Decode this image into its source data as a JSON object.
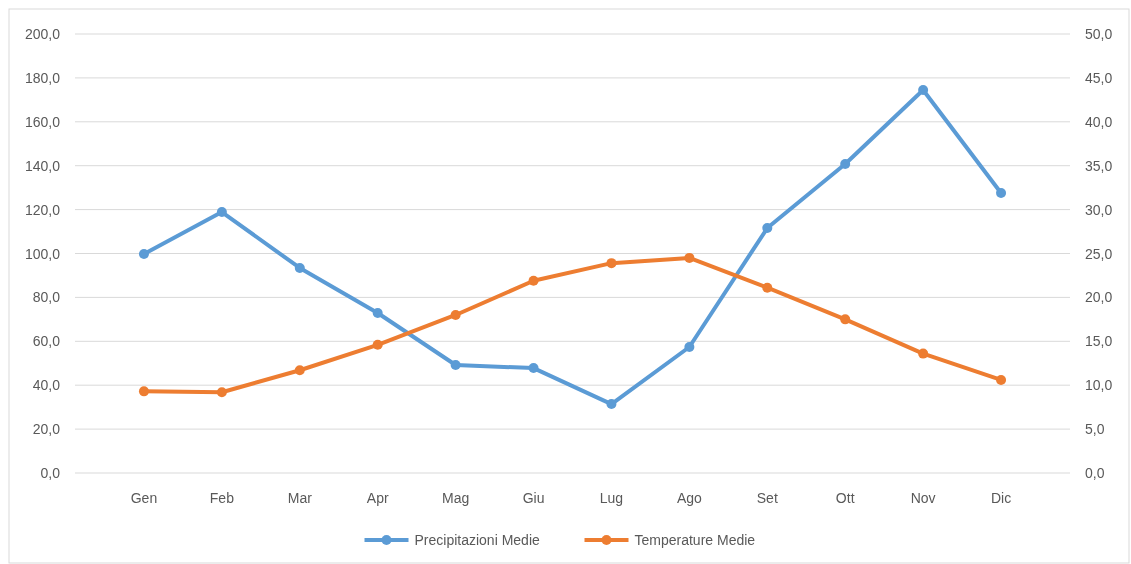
{
  "chart_data": {
    "type": "line",
    "categories": [
      "Gen",
      "Feb",
      "Mar",
      "Apr",
      "Mag",
      "Giu",
      "Lug",
      "Ago",
      "Set",
      "Ott",
      "Nov",
      "Dic"
    ],
    "series": [
      {
        "name": "Precipitazioni Medie",
        "color": "#5b9bd5",
        "values": [
          99.8,
          118.9,
          93.4,
          72.9,
          49.2,
          47.8,
          31.4,
          57.4,
          111.6,
          140.8,
          174.5,
          127.6
        ]
      },
      {
        "name": "Temperature Medie",
        "color": "#ed7d31",
        "axis": "y2",
        "values": [
          9.3,
          9.2,
          11.7,
          14.6,
          18.0,
          21.9,
          23.9,
          24.5,
          21.1,
          17.5,
          13.6,
          10.6
        ]
      }
    ],
    "ylim": [
      0,
      200
    ],
    "yticks": [
      {
        "value": 0,
        "label": "0,0"
      },
      {
        "value": 20,
        "label": "20,0"
      },
      {
        "value": 40,
        "label": "40,0"
      },
      {
        "value": 60,
        "label": "60,0"
      },
      {
        "value": 80,
        "label": "80,0"
      },
      {
        "value": 100,
        "label": "100,0"
      },
      {
        "value": 120,
        "label": "120,0"
      },
      {
        "value": 140,
        "label": "140,0"
      },
      {
        "value": 160,
        "label": "160,0"
      },
      {
        "value": 180,
        "label": "180,0"
      },
      {
        "value": 200,
        "label": "200,0"
      }
    ],
    "y2lim": [
      0,
      50
    ],
    "y2ticks": [
      {
        "value": 0,
        "label": "0,0"
      },
      {
        "value": 5,
        "label": "5,0"
      },
      {
        "value": 10,
        "label": "10,0"
      },
      {
        "value": 15,
        "label": "15,0"
      },
      {
        "value": 20,
        "label": "20,0"
      },
      {
        "value": 25,
        "label": "25,0"
      },
      {
        "value": 30,
        "label": "30,0"
      },
      {
        "value": 35,
        "label": "35,0"
      },
      {
        "value": 40,
        "label": "40,0"
      },
      {
        "value": 45,
        "label": "45,0"
      },
      {
        "value": 50,
        "label": "50,0"
      }
    ],
    "grid": "y",
    "legend": "bottom",
    "marker": "circle",
    "line_style": "solid"
  }
}
